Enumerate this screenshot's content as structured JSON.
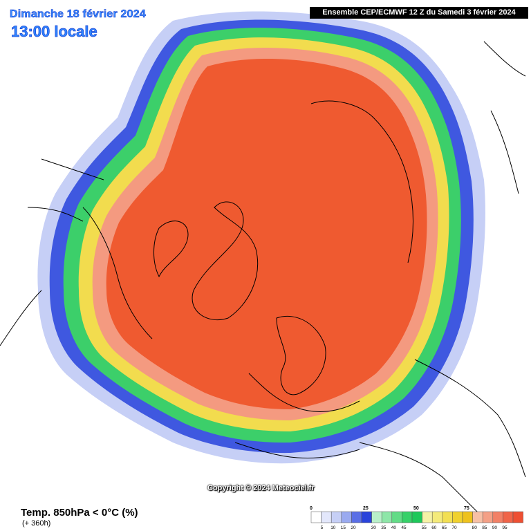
{
  "header": {
    "date": "Dimanche 18 février 2024",
    "time": "13:00 locale",
    "run": "Ensemble CEP/ECMWF 12 Z du Samedi 3 février 2024"
  },
  "map": {
    "projection": "polar-stereographic-north",
    "colors": {
      "background": "#ffffff",
      "coastlines": "#000000",
      "core": "#ef5a30"
    }
  },
  "copyright": "Copyright © 2024 Meteociel.fr",
  "parameter": {
    "title": "Temp. 850hPa < 0°C (%)",
    "lead": "(+ 360h)"
  },
  "legend": {
    "major_ticks": [
      "0",
      "25",
      "50",
      "75"
    ],
    "minor_ticks": [
      "5",
      "10",
      "15",
      "20",
      "30",
      "35",
      "40",
      "45",
      "55",
      "60",
      "65",
      "70",
      "80",
      "85",
      "90",
      "95"
    ],
    "colors": [
      "#ffffff",
      "#e3e7fb",
      "#c6cff6",
      "#9aaaf0",
      "#5a6fe6",
      "#2a43db",
      "#b9f0c9",
      "#8ee6a8",
      "#62dc86",
      "#36d168",
      "#1ec85a",
      "#f6f2a6",
      "#f4ea7a",
      "#f2df52",
      "#f0d12d",
      "#eec21d",
      "#f7c0a6",
      "#f4a086",
      "#f28066",
      "#f06448",
      "#ee4f32"
    ]
  }
}
